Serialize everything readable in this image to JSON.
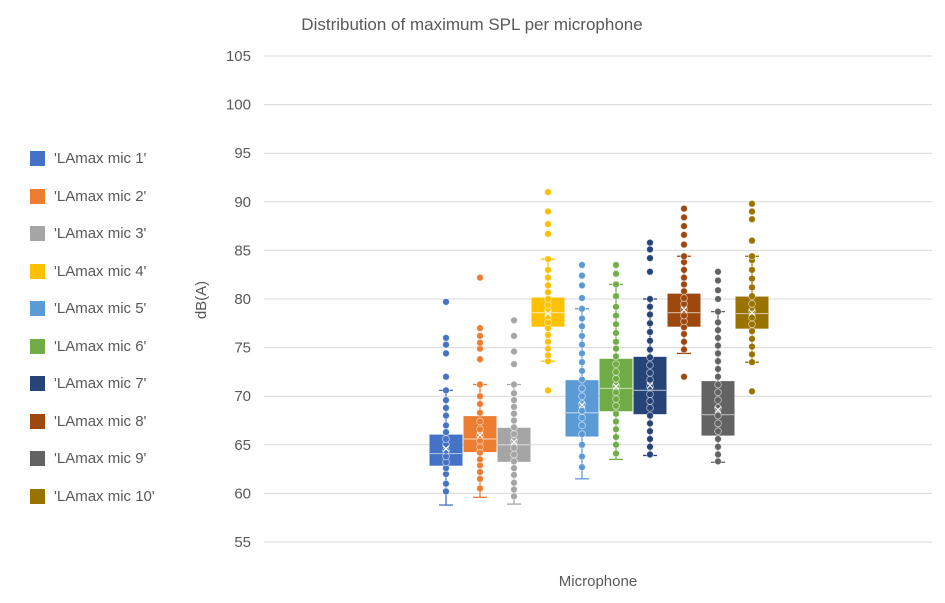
{
  "chart_data": {
    "type": "boxplot",
    "title": "Distribution of maximum SPL per microphone",
    "xlabel": "Microphone",
    "ylabel": "dB(A)",
    "ylim": [
      55,
      105
    ],
    "yticks": [
      55,
      60,
      65,
      70,
      75,
      80,
      85,
      90,
      95,
      100,
      105
    ],
    "grid": true,
    "legend_position": "left",
    "series": [
      {
        "name": "'LAmax mic 1'",
        "color": "#4472C4",
        "min": 58.8,
        "q1": 62.9,
        "median": 64.1,
        "mean": 64.6,
        "q3": 66.0,
        "max": 70.6,
        "points": [
          60.2,
          61.0,
          62.0,
          62.6,
          63.2,
          63.8,
          64.4,
          65.0,
          65.6,
          66.3,
          67.0,
          68.0,
          68.8,
          69.6,
          70.6,
          72.0,
          74.4,
          75.3,
          76.0,
          79.7
        ]
      },
      {
        "name": "'LAmax mic 2'",
        "color": "#ED7D31",
        "min": 59.6,
        "q1": 64.3,
        "median": 65.6,
        "mean": 66.0,
        "q3": 67.9,
        "max": 71.2,
        "points": [
          60.5,
          61.5,
          62.2,
          62.9,
          63.5,
          64.2,
          64.8,
          65.4,
          66.0,
          66.6,
          67.4,
          68.3,
          69.2,
          70.0,
          71.2,
          73.8,
          74.9,
          75.5,
          76.2,
          77.0,
          82.2
        ]
      },
      {
        "name": "'LAmax mic 3'",
        "color": "#A5A5A5",
        "min": 58.9,
        "q1": 63.3,
        "median": 65.0,
        "mean": 65.3,
        "q3": 66.7,
        "max": 71.2,
        "points": [
          59.7,
          60.4,
          61.1,
          61.9,
          62.6,
          63.3,
          64.0,
          64.7,
          65.4,
          66.1,
          66.8,
          67.5,
          68.2,
          68.9,
          69.6,
          70.3,
          71.2,
          73.3,
          74.6,
          76.2,
          77.8
        ]
      },
      {
        "name": "'LAmax mic 4'",
        "color": "#FFC000",
        "min": 73.6,
        "q1": 77.2,
        "median": 78.6,
        "mean": 78.5,
        "q3": 80.1,
        "max": 84.1,
        "points": [
          70.6,
          73.6,
          74.2,
          74.9,
          75.6,
          76.3,
          77.0,
          77.6,
          78.2,
          78.8,
          79.4,
          80.0,
          80.7,
          81.4,
          82.2,
          83.0,
          84.1,
          86.7,
          87.7,
          89.0,
          91.0
        ]
      },
      {
        "name": "'LAmax mic 5'",
        "color": "#5B9BD5",
        "min": 61.5,
        "q1": 65.9,
        "median": 68.3,
        "mean": 69.1,
        "q3": 71.6,
        "max": 79.0,
        "points": [
          62.7,
          63.8,
          65.0,
          66.1,
          67.0,
          67.8,
          68.5,
          69.2,
          70.0,
          70.8,
          71.7,
          72.6,
          73.5,
          74.4,
          75.3,
          76.2,
          77.2,
          78.0,
          79.0,
          80.1,
          81.4,
          82.4,
          83.5
        ]
      },
      {
        "name": "'LAmax mic 6'",
        "color": "#70AD47",
        "min": 63.5,
        "q1": 68.5,
        "median": 70.8,
        "mean": 71.0,
        "q3": 73.8,
        "max": 81.5,
        "points": [
          64.1,
          65.0,
          65.8,
          66.6,
          67.4,
          68.2,
          69.0,
          69.7,
          70.4,
          71.1,
          71.8,
          72.5,
          73.3,
          74.1,
          74.9,
          75.6,
          76.5,
          77.4,
          78.3,
          79.2,
          80.3,
          81.5,
          82.6,
          83.5
        ]
      },
      {
        "name": "'LAmax mic 7'",
        "color": "#264478",
        "min": 63.9,
        "q1": 68.2,
        "median": 70.6,
        "mean": 71.1,
        "q3": 74.0,
        "max": 80.0,
        "points": [
          64.0,
          64.8,
          65.6,
          66.4,
          67.2,
          68.0,
          68.8,
          69.5,
          70.2,
          71.0,
          71.7,
          72.4,
          73.2,
          74.0,
          74.8,
          75.7,
          76.6,
          77.5,
          78.4,
          79.2,
          80.0,
          82.8,
          84.2,
          85.1,
          85.8
        ]
      },
      {
        "name": "'LAmax mic 8'",
        "color": "#9E480E",
        "min": 74.4,
        "q1": 77.2,
        "median": 78.6,
        "mean": 78.9,
        "q3": 80.5,
        "max": 84.4,
        "points": [
          72.0,
          74.8,
          75.6,
          76.4,
          77.1,
          77.7,
          78.3,
          78.9,
          79.5,
          80.1,
          80.8,
          81.5,
          82.2,
          83.0,
          83.8,
          84.4,
          85.6,
          86.6,
          87.5,
          88.4,
          89.3
        ]
      },
      {
        "name": "'LAmax mic 9'",
        "color": "#636363",
        "min": 63.2,
        "q1": 66.0,
        "median": 68.1,
        "mean": 68.6,
        "q3": 71.5,
        "max": 78.7,
        "points": [
          63.3,
          64.0,
          64.8,
          65.6,
          66.4,
          67.2,
          68.0,
          68.8,
          69.6,
          70.4,
          71.2,
          72.0,
          72.8,
          73.6,
          74.4,
          75.2,
          76.0,
          76.8,
          77.6,
          78.7,
          80.0,
          80.9,
          81.9,
          82.8
        ]
      },
      {
        "name": "'LAmax mic 10'",
        "color": "#997300",
        "min": 73.5,
        "q1": 77.0,
        "median": 78.5,
        "mean": 78.6,
        "q3": 80.2,
        "max": 84.4,
        "points": [
          70.5,
          73.5,
          74.3,
          75.1,
          75.9,
          76.7,
          77.4,
          78.1,
          78.8,
          79.5,
          80.3,
          81.2,
          82.1,
          83.0,
          84.0,
          84.4,
          86.0,
          88.2,
          89.0,
          89.8
        ]
      }
    ]
  }
}
